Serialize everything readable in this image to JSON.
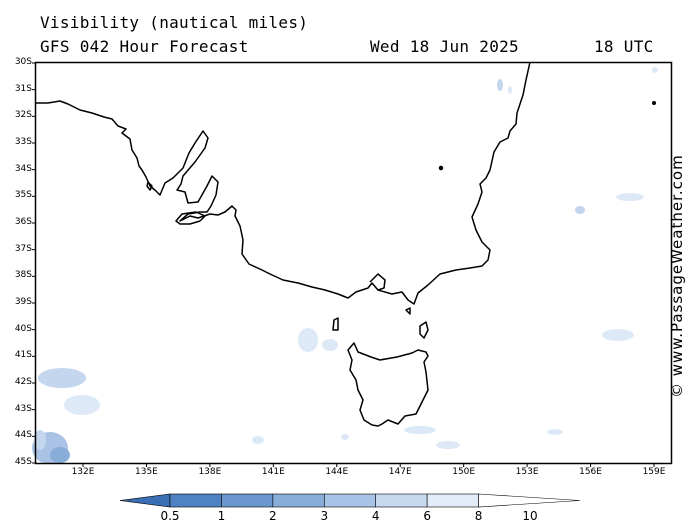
{
  "header": {
    "title": "Visibility (nautical miles)",
    "subtitle": "GFS 042 Hour Forecast",
    "date": "Wed 18 Jun 2025",
    "time": "18 UTC"
  },
  "map": {
    "lat_labels": [
      "30S",
      "31S",
      "32S",
      "33S",
      "34S",
      "35S",
      "36S",
      "37S",
      "38S",
      "39S",
      "40S",
      "41S",
      "42S",
      "43S",
      "44S",
      "45S"
    ],
    "lon_labels": [
      "132E",
      "135E",
      "138E",
      "141E",
      "144E",
      "147E",
      "150E",
      "153E",
      "156E",
      "159E"
    ],
    "coast_color": "#000000",
    "haze_colors": [
      "#dde9f7",
      "#c3d6ee",
      "#a9c2e5"
    ]
  },
  "credit": "© www.PassageWeather.com",
  "colorbar": {
    "labels": [
      "0.5",
      "1",
      "2",
      "3",
      "4",
      "6",
      "8",
      "10"
    ],
    "colors": [
      "#3a6fb5",
      "#4f82c2",
      "#6b97cf",
      "#88add9",
      "#a7c3e5",
      "#c6d9ef",
      "#e2ecf8",
      "#ffffff"
    ]
  }
}
